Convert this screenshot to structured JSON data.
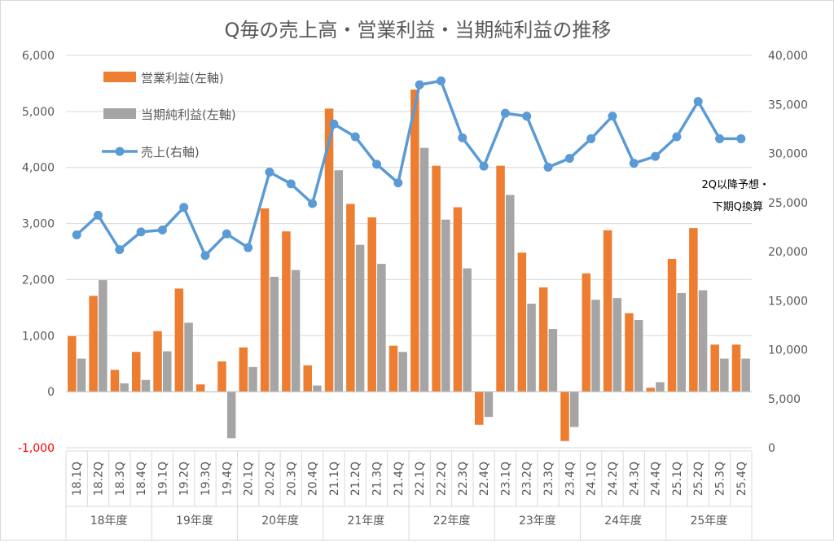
{
  "chart_data": {
    "type": "bar",
    "title": "Q毎の売上高・営業利益・当期純利益の推移",
    "categories": [
      "18.1Q",
      "18.2Q",
      "18.3Q",
      "18.4Q",
      "19.1Q",
      "19.2Q",
      "19.3Q",
      "19.4Q",
      "20.1Q",
      "20.2Q",
      "20.3Q",
      "20.4Q",
      "21.1Q",
      "21.2Q",
      "21.3Q",
      "21.4Q",
      "22.1Q",
      "22.2Q",
      "22.3Q",
      "22.4Q",
      "23.1Q",
      "23.2Q",
      "23.3Q",
      "23.4Q",
      "24.1Q",
      "24.2Q",
      "24.3Q",
      "24.4Q",
      "25.1Q",
      "25.2Q",
      "25.3Q",
      "25.4Q"
    ],
    "groups": [
      "18年度",
      "19年度",
      "20年度",
      "21年度",
      "22年度",
      "23年度",
      "24年度",
      "25年度"
    ],
    "series": [
      {
        "name": "営業利益(左軸)",
        "axis": "left",
        "color": "#ed7d31",
        "values": [
          990,
          1710,
          390,
          710,
          1080,
          1840,
          130,
          540,
          790,
          3270,
          2860,
          470,
          5050,
          3350,
          3110,
          820,
          5390,
          4030,
          3290,
          -590,
          4030,
          2480,
          1860,
          -880,
          2110,
          2880,
          1400,
          70,
          2370,
          2920,
          840,
          840
        ]
      },
      {
        "name": "当期純利益(左軸)",
        "axis": "left",
        "color": "#a5a5a5",
        "values": [
          590,
          1990,
          150,
          210,
          720,
          1230,
          0,
          -830,
          440,
          2050,
          2170,
          110,
          3950,
          2620,
          2280,
          710,
          4350,
          3070,
          2200,
          -450,
          3510,
          1570,
          1120,
          -630,
          1640,
          1670,
          1280,
          170,
          1760,
          1810,
          590,
          590
        ]
      },
      {
        "name": "売上(右軸)",
        "axis": "right",
        "type": "line",
        "color": "#5b9bd5",
        "values": [
          21700,
          23700,
          20200,
          22000,
          22200,
          24500,
          19600,
          21800,
          20400,
          28100,
          26900,
          24900,
          33000,
          31700,
          28900,
          27000,
          37000,
          37400,
          31600,
          28700,
          34100,
          33800,
          28600,
          29500,
          31500,
          33800,
          29000,
          29700,
          31700,
          35300,
          31500,
          31500
        ]
      }
    ],
    "y_left": {
      "min": -1000,
      "max": 6000,
      "step": 1000,
      "ticks": [
        "-1,000",
        "0",
        "1,000",
        "2,000",
        "3,000",
        "4,000",
        "5,000",
        "6,000"
      ],
      "negative_color": "#ff0000"
    },
    "y_right": {
      "min": 0,
      "max": 40000,
      "step": 5000,
      "ticks": [
        "0",
        "5,000",
        "10,000",
        "15,000",
        "20,000",
        "25,000",
        "30,000",
        "35,000",
        "40,000"
      ]
    },
    "annotation": {
      "line1": "2Q以降予想・",
      "line2": "下期Q換算"
    },
    "legend_position": "top-left"
  }
}
